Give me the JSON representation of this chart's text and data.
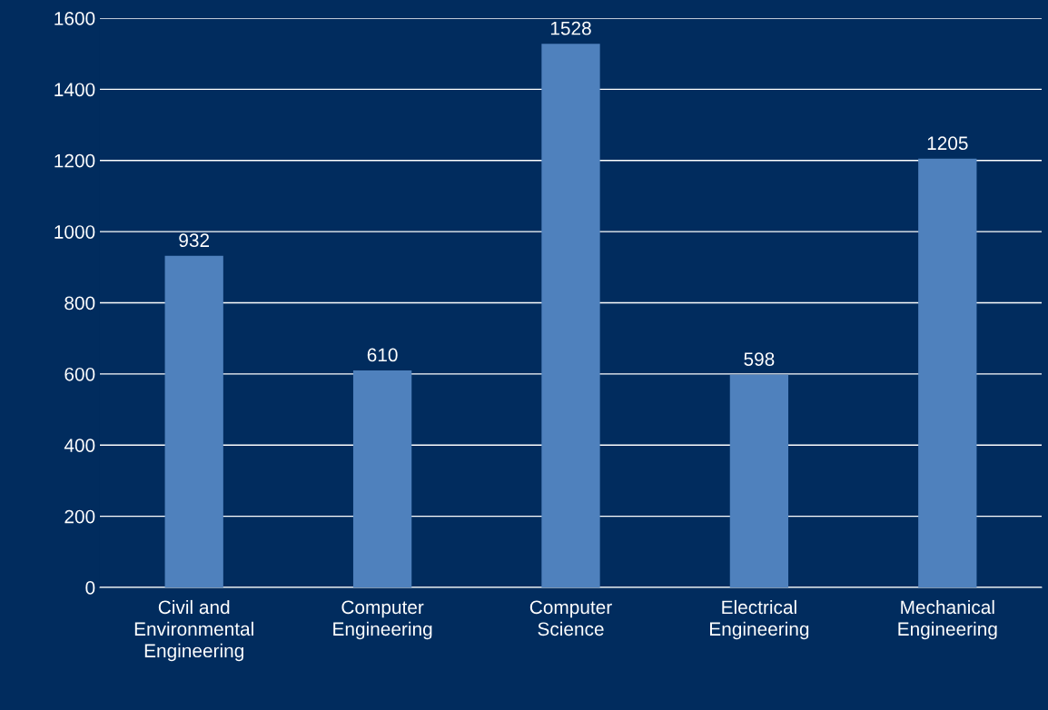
{
  "chart_data": {
    "type": "bar",
    "categories": [
      "Civil and Environmental Engineering",
      "Computer Engineering",
      "Computer Science",
      "Electrical Engineering",
      "Mechanical Engineering"
    ],
    "values": [
      932,
      610,
      1528,
      598,
      1205
    ],
    "color": "#4f81bd",
    "ylim": [
      0,
      1600
    ],
    "yticks": [
      0,
      200,
      400,
      600,
      800,
      1000,
      1200,
      1400,
      1600
    ],
    "grid": "y",
    "data_labels": true
  }
}
